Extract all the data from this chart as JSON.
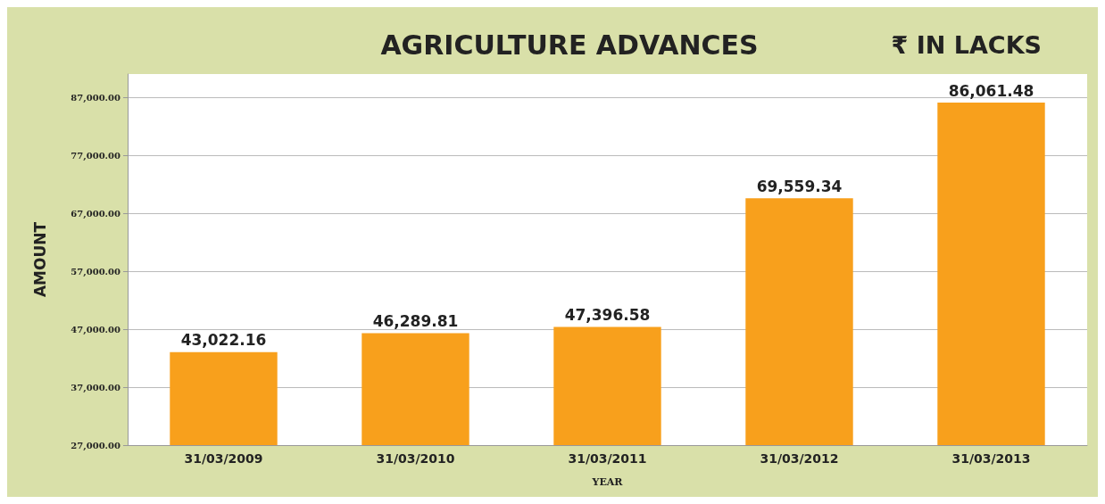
{
  "chart_data": {
    "type": "bar",
    "title": "AGRICULTURE ADVANCES",
    "subtitle": "₹ IN LACKS",
    "xlabel": "YEAR",
    "ylabel": "AMOUNT",
    "categories": [
      "31/03/2009",
      "31/03/2010",
      "31/03/2011",
      "31/03/2012",
      "31/03/2013"
    ],
    "series": [
      {
        "color": "#f8a01c",
        "values": [
          43022.16,
          46289.81,
          47396.58,
          69559.34,
          86061.48
        ]
      }
    ],
    "value_labels": [
      "43,022.16",
      "46,289.81",
      "47,396.58",
      "69,559.34",
      "86,061.48"
    ],
    "ylim": [
      27000,
      91000
    ],
    "yticks": [
      {
        "value": 27000,
        "label": "27,000.00"
      },
      {
        "value": 37000,
        "label": "37,000.00"
      },
      {
        "value": 47000,
        "label": "47,000.00"
      },
      {
        "value": 57000,
        "label": "57,000.00"
      },
      {
        "value": 67000,
        "label": "67,000.00"
      },
      {
        "value": 77000,
        "label": "77,000.00"
      },
      {
        "value": 87000,
        "label": "87,000.00"
      }
    ],
    "grid": "y"
  }
}
